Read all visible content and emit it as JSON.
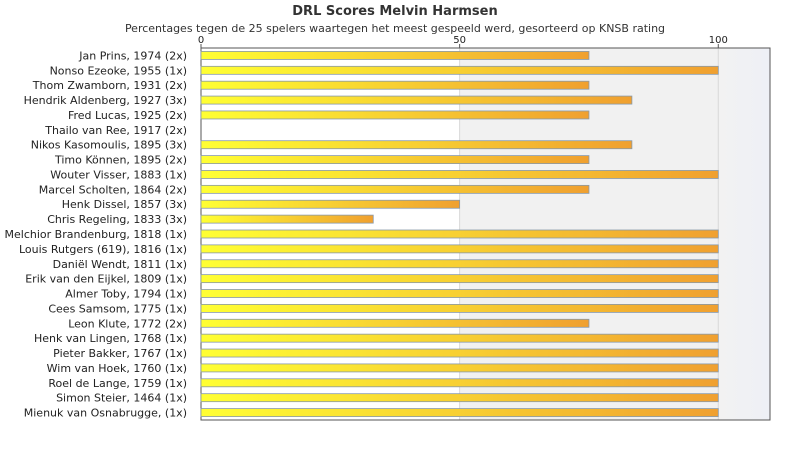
{
  "chart_data": {
    "type": "bar",
    "orientation": "horizontal",
    "title": "DRL Scores Melvin Harmsen",
    "subtitle": "Percentages tegen de 25 spelers waartegen het meest gespeeld werd, gesorteerd op KNSB rating",
    "xlim": [
      0,
      110
    ],
    "xticks": [
      "0",
      "50",
      "100"
    ],
    "categories": [
      "Jan Prins, 1974 (2x)",
      "Nonso Ezeoke, 1955 (1x)",
      "Thom Zwamborn, 1931 (2x)",
      "Hendrik Aldenberg, 1927 (3x)",
      "Fred Lucas, 1925 (2x)",
      "Thailo van Ree, 1917 (2x)",
      "Nikos Kasomoulis, 1895 (3x)",
      "Timo Können, 1895 (2x)",
      "Wouter Visser, 1883 (1x)",
      "Marcel Scholten, 1864 (2x)",
      "Henk Dissel, 1857 (3x)",
      "Chris Regeling, 1833 (3x)",
      "Melchior Brandenburg, 1818 (1x)",
      "Louis Rutgers (619), 1816 (1x)",
      "Daniël Wendt, 1811 (1x)",
      "Erik van den Eijkel, 1809 (1x)",
      "Almer Toby, 1794 (1x)",
      "Cees Samsom, 1775 (1x)",
      "Leon Klute, 1772 (2x)",
      "Henk van Lingen, 1768 (1x)",
      "Pieter Bakker, 1767 (1x)",
      "Wim van Hoek, 1760 (1x)",
      "Roel de Lange, 1759 (1x)",
      "Simon Steier, 1464 (1x)",
      "Mienuk van Osnabrugge,  (1x)"
    ],
    "values": [
      75,
      100,
      75,
      83.3,
      75,
      0,
      83.3,
      75,
      100,
      75,
      50,
      33.3,
      100,
      100,
      100,
      100,
      100,
      100,
      75,
      100,
      100,
      100,
      100,
      100,
      100
    ],
    "bar_gradient": [
      "#ffff33",
      "#f0a030"
    ],
    "bar_stroke": "#8899aa"
  }
}
